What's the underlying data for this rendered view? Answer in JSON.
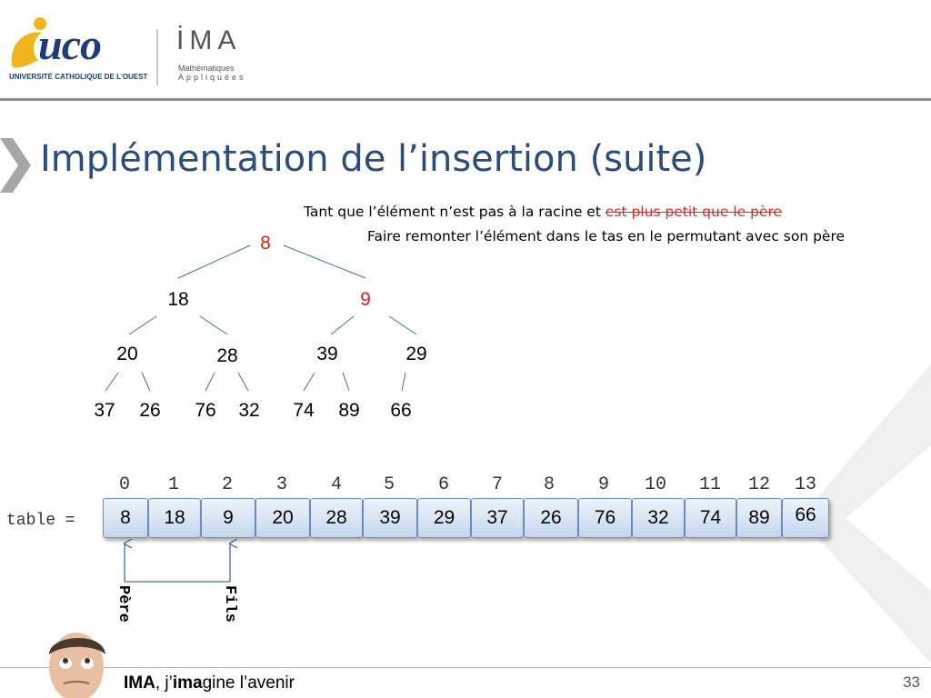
{
  "header": {
    "uco_logo_text": "uco",
    "uco_logo_sub": "UNIVERSITÉ CATHOLIQUE DE L'OUEST",
    "ima_logo_text": "İMA",
    "ima_logo_sub1": "Mathématiques",
    "ima_logo_sub2": "Appliquées"
  },
  "slide": {
    "title": "Implémentation de l’insertion (suite)",
    "algo_line1_prefix": "Tant que l’élément n’est pas à la racine et ",
    "algo_line1_strike": "est plus petit que le père",
    "algo_line2": "Faire remonter l’élément dans le tas en le permutant avec son père"
  },
  "tree": {
    "nodes": [
      "8",
      "18",
      "9",
      "20",
      "28",
      "39",
      "29",
      "37",
      "26",
      "76",
      "32",
      "74",
      "89",
      "66"
    ],
    "highlight_color": "#e21d1d"
  },
  "array": {
    "label": "table =",
    "indices": [
      "0",
      "1",
      "2",
      "3",
      "4",
      "5",
      "6",
      "7",
      "8",
      "9",
      "10",
      "11",
      "12",
      "13"
    ],
    "values": [
      "8",
      "18",
      "9",
      "20",
      "28",
      "39",
      "29",
      "37",
      "26",
      "76",
      "32",
      "74",
      "89",
      "66"
    ],
    "parent_label": "Père",
    "child_label": "Fils"
  },
  "footer": {
    "brand": "IMA",
    "sep": ", j’",
    "ima_bold": "ima",
    "rest": "gine l’avenir",
    "page_number": "33"
  }
}
